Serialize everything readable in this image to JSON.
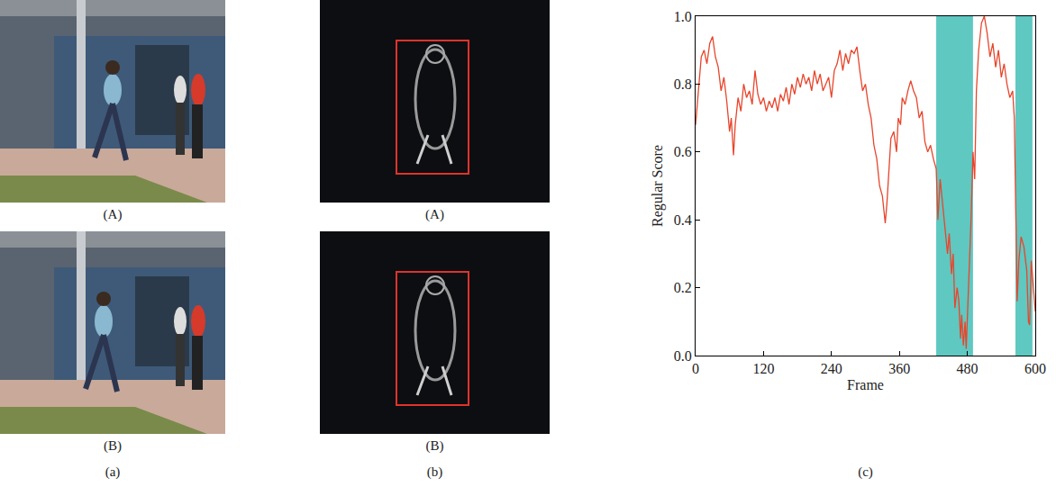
{
  "panels": [
    {
      "label": "(a)",
      "kind": "photo",
      "images": [
        {
          "label": "(A)"
        },
        {
          "label": "(B)"
        }
      ]
    },
    {
      "label": "(b)",
      "kind": "motion",
      "images": [
        {
          "label": "(A)"
        },
        {
          "label": "(B)"
        }
      ]
    }
  ],
  "chart_data": {
    "label": "(c)",
    "type": "line",
    "x_label": "Frame",
    "y_label": "Regular Score",
    "x": [
      0,
      5,
      10,
      15,
      20,
      25,
      30,
      35,
      40,
      45,
      50,
      55,
      60,
      63,
      67,
      70,
      75,
      80,
      85,
      90,
      95,
      100,
      105,
      110,
      115,
      120,
      125,
      130,
      135,
      140,
      145,
      150,
      155,
      160,
      165,
      170,
      175,
      180,
      185,
      190,
      195,
      200,
      205,
      210,
      215,
      220,
      225,
      230,
      235,
      240,
      245,
      250,
      255,
      260,
      265,
      270,
      275,
      280,
      285,
      290,
      295,
      300,
      305,
      310,
      315,
      320,
      325,
      330,
      335,
      338,
      342,
      345,
      350,
      355,
      358,
      362,
      365,
      370,
      375,
      380,
      385,
      390,
      395,
      400,
      405,
      410,
      415,
      420,
      425,
      428,
      432,
      436,
      440,
      445,
      448,
      452,
      455,
      458,
      462,
      465,
      468,
      470,
      473,
      476,
      478,
      481,
      484,
      487,
      490,
      493,
      496,
      500,
      505,
      510,
      515,
      520,
      525,
      530,
      535,
      540,
      545,
      550,
      555,
      560,
      563,
      566,
      568,
      571,
      575,
      580,
      585,
      588,
      590,
      593,
      596,
      600
    ],
    "values": [
      0.68,
      0.78,
      0.88,
      0.9,
      0.86,
      0.92,
      0.94,
      0.88,
      0.85,
      0.78,
      0.82,
      0.75,
      0.66,
      0.7,
      0.59,
      0.68,
      0.76,
      0.72,
      0.8,
      0.76,
      0.78,
      0.74,
      0.84,
      0.77,
      0.74,
      0.76,
      0.72,
      0.75,
      0.73,
      0.76,
      0.72,
      0.77,
      0.75,
      0.79,
      0.74,
      0.8,
      0.77,
      0.82,
      0.79,
      0.83,
      0.8,
      0.82,
      0.78,
      0.84,
      0.8,
      0.83,
      0.78,
      0.8,
      0.82,
      0.76,
      0.84,
      0.86,
      0.9,
      0.84,
      0.89,
      0.86,
      0.9,
      0.89,
      0.91,
      0.84,
      0.78,
      0.8,
      0.74,
      0.7,
      0.62,
      0.58,
      0.5,
      0.47,
      0.39,
      0.45,
      0.56,
      0.64,
      0.66,
      0.6,
      0.7,
      0.68,
      0.76,
      0.74,
      0.78,
      0.81,
      0.78,
      0.76,
      0.7,
      0.72,
      0.63,
      0.6,
      0.62,
      0.58,
      0.55,
      0.4,
      0.52,
      0.45,
      0.38,
      0.3,
      0.36,
      0.24,
      0.3,
      0.14,
      0.2,
      0.16,
      0.05,
      0.12,
      0.03,
      0.1,
      0.02,
      0.15,
      0.28,
      0.42,
      0.6,
      0.52,
      0.78,
      0.9,
      0.98,
      1.0,
      0.95,
      0.88,
      0.92,
      0.85,
      0.9,
      0.82,
      0.86,
      0.8,
      0.76,
      0.78,
      0.7,
      0.4,
      0.16,
      0.28,
      0.35,
      0.32,
      0.25,
      0.1,
      0.09,
      0.28,
      0.22,
      0.13
    ],
    "color": "#e8452c",
    "xlim": [
      0,
      600
    ],
    "xticks": [
      0,
      120,
      240,
      360,
      480,
      600
    ],
    "ylim": [
      0,
      1
    ],
    "yticks": [
      {
        "value": 0,
        "label": "0.0"
      },
      {
        "value": 0.2,
        "label": "0.2"
      },
      {
        "value": 0.4,
        "label": "0.4"
      },
      {
        "value": 0.6,
        "label": "0.6"
      },
      {
        "value": 0.8,
        "label": "0.8"
      },
      {
        "value": 1,
        "label": "1.0"
      }
    ],
    "grid": false,
    "shaded_regions": [
      [
        425,
        490
      ],
      [
        565,
        595
      ]
    ],
    "shade_color": "#5ec8c1"
  }
}
